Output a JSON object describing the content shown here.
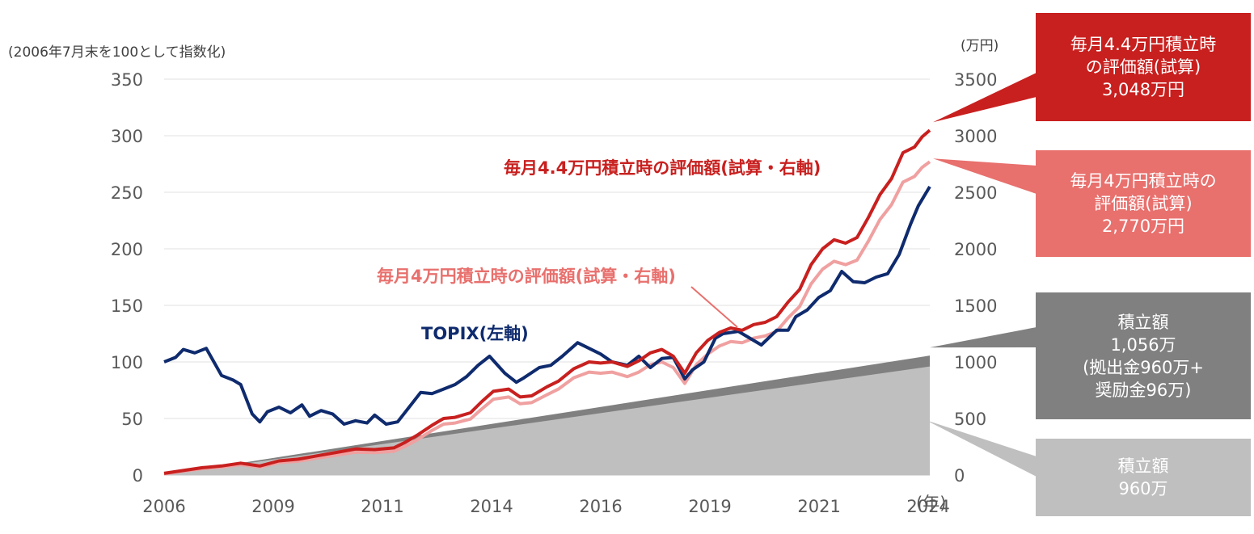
{
  "chart_data": {
    "type": "area",
    "left_axis": {
      "label": "(2006年7月末を100として指数化)",
      "ticks": [
        "0",
        "50",
        "100",
        "150",
        "200",
        "250",
        "300",
        "350"
      ],
      "range": [
        0,
        350
      ]
    },
    "right_axis": {
      "unit": "(万円)",
      "ticks": [
        "0",
        "500",
        "1000",
        "1500",
        "2000",
        "2500",
        "3000",
        "3500"
      ],
      "range": [
        0,
        3500
      ]
    },
    "x_axis": {
      "ticks": [
        "2006",
        "2009",
        "2011",
        "2014",
        "2016",
        "2019",
        "2021",
        "2024"
      ],
      "unit": "(年)",
      "range": [
        2006.5,
        2026.5
      ]
    },
    "grid": "horizontal",
    "colors": {
      "topix": "#0f2b6e",
      "s44": "#c8201f",
      "s40": "#f0a0a0",
      "contrib": "#bfbfbf",
      "bonus": "#808080",
      "lbl40": "#e8706d"
    },
    "series": [
      {
        "name": "TOPIX(左軸)",
        "axis": "left",
        "kind": "line",
        "x": [
          2006.5,
          2006.8,
          2007.0,
          2007.3,
          2007.6,
          2007.8,
          2008.0,
          2008.3,
          2008.5,
          2008.8,
          2009.0,
          2009.2,
          2009.5,
          2009.8,
          2010.1,
          2010.3,
          2010.6,
          2010.9,
          2011.2,
          2011.5,
          2011.8,
          2012.0,
          2012.3,
          2012.6,
          2012.9,
          2013.2,
          2013.5,
          2013.8,
          2014.1,
          2014.4,
          2014.7,
          2015.0,
          2015.4,
          2015.7,
          2015.9,
          2016.3,
          2016.6,
          2016.9,
          2017.3,
          2017.6,
          2017.9,
          2018.2,
          2018.6,
          2018.9,
          2019.2,
          2019.5,
          2019.8,
          2020.1,
          2020.3,
          2020.6,
          2020.9,
          2021.1,
          2021.5,
          2021.8,
          2022.1,
          2022.5,
          2022.8,
          2023.0,
          2023.3,
          2023.6,
          2023.9,
          2024.2,
          2024.5,
          2024.8,
          2025.1,
          2025.4,
          2025.7,
          2026.0,
          2026.2,
          2026.5
        ],
        "y": [
          100,
          104,
          111,
          108,
          112,
          100,
          88,
          84,
          80,
          54,
          47,
          56,
          60,
          55,
          62,
          52,
          57,
          54,
          45,
          48,
          46,
          53,
          45,
          47,
          60,
          73,
          72,
          76,
          80,
          87,
          97,
          105,
          90,
          82,
          86,
          95,
          97,
          105,
          117,
          112,
          107,
          100,
          97,
          105,
          95,
          103,
          104,
          85,
          93,
          100,
          121,
          125,
          127,
          121,
          115,
          128,
          128,
          140,
          146,
          157,
          163,
          180,
          171,
          170,
          175,
          178,
          195,
          222,
          238,
          255
        ]
      },
      {
        "name": "毎月4.4万円積立時の評価額(試算・右軸)",
        "axis": "right",
        "kind": "line",
        "x": [
          2006.5,
          2007.0,
          2007.5,
          2008.0,
          2008.5,
          2009.0,
          2009.5,
          2010.0,
          2010.5,
          2011.0,
          2011.5,
          2012.0,
          2012.5,
          2012.8,
          2013.1,
          2013.5,
          2013.8,
          2014.1,
          2014.5,
          2014.8,
          2015.1,
          2015.5,
          2015.8,
          2016.1,
          2016.5,
          2016.8,
          2017.2,
          2017.6,
          2017.9,
          2018.2,
          2018.6,
          2018.9,
          2019.2,
          2019.5,
          2019.8,
          2020.1,
          2020.4,
          2020.7,
          2021.0,
          2021.3,
          2021.6,
          2021.9,
          2022.2,
          2022.5,
          2022.8,
          2023.1,
          2023.4,
          2023.7,
          2024.0,
          2024.3,
          2024.6,
          2024.9,
          2025.2,
          2025.5,
          2025.8,
          2026.1,
          2026.3,
          2026.5
        ],
        "y": [
          15,
          40,
          65,
          80,
          105,
          80,
          125,
          140,
          170,
          200,
          230,
          225,
          240,
          290,
          350,
          440,
          500,
          510,
          550,
          650,
          740,
          760,
          690,
          700,
          780,
          830,
          940,
          1000,
          990,
          1000,
          960,
          1010,
          1080,
          1110,
          1050,
          900,
          1080,
          1190,
          1260,
          1300,
          1280,
          1330,
          1350,
          1400,
          1530,
          1640,
          1860,
          2000,
          2080,
          2050,
          2100,
          2280,
          2480,
          2620,
          2850,
          2900,
          2990,
          3048
        ]
      },
      {
        "name": "毎月4万円積立時の評価額(試算・右軸)",
        "axis": "right",
        "kind": "line",
        "x": [
          2006.5,
          2007.0,
          2007.5,
          2008.0,
          2008.5,
          2009.0,
          2009.5,
          2010.0,
          2010.5,
          2011.0,
          2011.5,
          2012.0,
          2012.5,
          2012.8,
          2013.1,
          2013.5,
          2013.8,
          2014.1,
          2014.5,
          2014.8,
          2015.1,
          2015.5,
          2015.8,
          2016.1,
          2016.5,
          2016.8,
          2017.2,
          2017.6,
          2017.9,
          2018.2,
          2018.6,
          2018.9,
          2019.2,
          2019.5,
          2019.8,
          2020.1,
          2020.4,
          2020.7,
          2021.0,
          2021.3,
          2021.6,
          2021.9,
          2022.2,
          2022.5,
          2022.8,
          2023.1,
          2023.4,
          2023.7,
          2024.0,
          2024.3,
          2024.6,
          2024.9,
          2025.2,
          2025.5,
          2025.8,
          2026.1,
          2026.3,
          2026.5
        ],
        "y": [
          10,
          35,
          57,
          70,
          92,
          70,
          110,
          122,
          150,
          176,
          202,
          198,
          210,
          255,
          310,
          395,
          450,
          460,
          495,
          585,
          670,
          690,
          630,
          640,
          710,
          760,
          860,
          910,
          900,
          910,
          870,
          910,
          975,
          1000,
          950,
          810,
          975,
          1070,
          1140,
          1180,
          1170,
          1210,
          1230,
          1270,
          1390,
          1490,
          1690,
          1820,
          1890,
          1860,
          1900,
          2070,
          2260,
          2390,
          2590,
          2640,
          2720,
          2770
        ]
      },
      {
        "name": "積立額 1,056万",
        "axis": "right",
        "kind": "area",
        "x": [
          2006.5,
          2026.5
        ],
        "y": [
          0,
          1056
        ]
      },
      {
        "name": "積立額 960万",
        "axis": "right",
        "kind": "area",
        "x": [
          2006.5,
          2026.5
        ],
        "y": [
          0,
          960
        ]
      }
    ],
    "series_labels": {
      "s44": "毎月4.4万円積立時の評価額(試算・右軸)",
      "s40": "毎月4万円積立時の評価額(試算・右軸)",
      "topix": "TOPIX(左軸)"
    },
    "callouts": {
      "c44": [
        "毎月4.4万円積立時",
        "の評価額(試算)",
        "3,048万円"
      ],
      "c40": [
        "毎月4万円積立時の",
        "評価額(試算)",
        "2,770万円"
      ],
      "c_total": [
        "積立額",
        "1,056万",
        "(拠出金960万+",
        "奨励金96万)"
      ],
      "c_base": [
        "積立額",
        "960万"
      ]
    }
  }
}
